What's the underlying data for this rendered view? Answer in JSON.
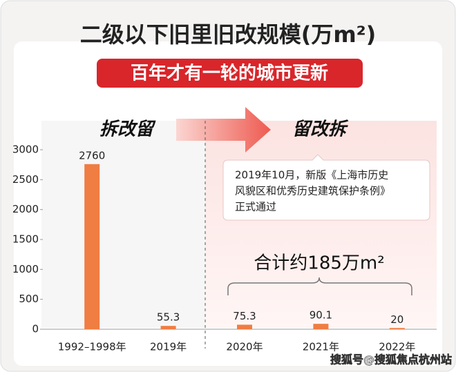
{
  "chart_data": {
    "type": "bar",
    "title": "二级以下旧里旧改规模(万m²)",
    "subtitle": "百年才有一轮的城市更新",
    "categories": [
      "1992–1998年",
      "2019年",
      "2020年",
      "2021年",
      "2022年"
    ],
    "values": [
      2760,
      55.3,
      75.3,
      90.1,
      20
    ],
    "color": "#f07d42",
    "ylim": [
      0,
      3000
    ],
    "yticks": [
      0,
      500,
      1000,
      1500,
      2000,
      2500,
      3000
    ],
    "annotations": {
      "left_label": "拆改留",
      "right_label": "留改拆",
      "note_lines": [
        "2019年10月，新版《上海市历史",
        "风貌区和优秀历史建筑保护条例》",
        "正式通过"
      ],
      "total": "合计约185万m²"
    }
  },
  "watermark": "搜狐号@搜狐焦点杭州站"
}
